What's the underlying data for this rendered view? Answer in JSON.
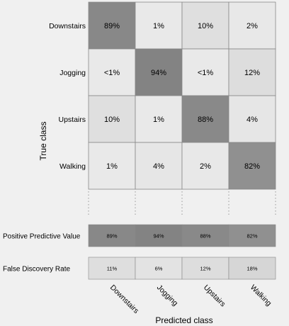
{
  "chart_data": {
    "type": "heatmap",
    "title": "",
    "ylabel": "True class",
    "xlabel": "Predicted class",
    "true_classes": [
      "Downstairs",
      "Jogging",
      "Upstairs",
      "Walking"
    ],
    "predicted_classes": [
      "Downstairs",
      "Jogging",
      "Upstairs",
      "Walking"
    ],
    "matrix_labels": [
      [
        "89%",
        "1%",
        "10%",
        "2%"
      ],
      [
        "<1%",
        "94%",
        "<1%",
        "12%"
      ],
      [
        "10%",
        "1%",
        "88%",
        "4%"
      ],
      [
        "1%",
        "4%",
        "2%",
        "82%"
      ]
    ],
    "matrix_values": [
      [
        89,
        1,
        10,
        2
      ],
      [
        0.5,
        94,
        0.5,
        12
      ],
      [
        10,
        1,
        88,
        4
      ],
      [
        1,
        4,
        2,
        82
      ]
    ],
    "summary_rows": [
      {
        "name": "Positive Predictive Value",
        "labels": [
          "89%",
          "94%",
          "88%",
          "82%"
        ],
        "values": [
          89,
          94,
          88,
          82
        ]
      },
      {
        "name": "False Discovery Rate",
        "labels": [
          "11%",
          "6%",
          "12%",
          "18%"
        ],
        "values": [
          11,
          6,
          12,
          18
        ]
      }
    ],
    "colors": {
      "background": "#f0f0f0",
      "cell_light": "#eaeaea",
      "cell_dark": "#7c7c7c",
      "border": "#888888"
    }
  }
}
